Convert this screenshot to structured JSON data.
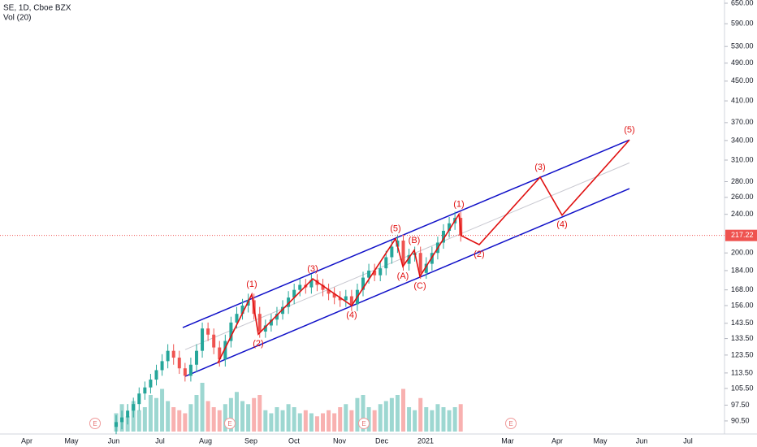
{
  "chart_data": {
    "type": "candlestick",
    "title": "SE, 1D, Cboe BZX",
    "subtitle": "Vol (20)",
    "log_scale": true,
    "grid": false,
    "up_color": "#26a69a",
    "down_color": "#ef5350",
    "ylim": [
      86.4,
      660
    ],
    "yticks": [
      {
        "value": 650,
        "label": "650.00"
      },
      {
        "value": 590,
        "label": "590.00"
      },
      {
        "value": 530,
        "label": "530.00"
      },
      {
        "value": 490,
        "label": "490.00"
      },
      {
        "value": 450,
        "label": "450.00"
      },
      {
        "value": 410,
        "label": "410.00"
      },
      {
        "value": 370,
        "label": "370.00"
      },
      {
        "value": 340,
        "label": "340.00"
      },
      {
        "value": 310,
        "label": "310.00"
      },
      {
        "value": 280,
        "label": "280.00"
      },
      {
        "value": 260,
        "label": "260.00"
      },
      {
        "value": 240,
        "label": "240.00"
      },
      {
        "value": 200,
        "label": "200.00"
      },
      {
        "value": 184,
        "label": "184.00"
      },
      {
        "value": 168,
        "label": "168.00"
      },
      {
        "value": 156,
        "label": "156.00"
      },
      {
        "value": 143.5,
        "label": "143.50"
      },
      {
        "value": 133.5,
        "label": "133.50"
      },
      {
        "value": 123.5,
        "label": "123.50"
      },
      {
        "value": 113.5,
        "label": "113.50"
      },
      {
        "value": 105.5,
        "label": "105.50"
      },
      {
        "value": 97.5,
        "label": "97.50"
      },
      {
        "value": 90.5,
        "label": "90.50"
      }
    ],
    "last_price": {
      "value": 217.22,
      "label": "217.22"
    },
    "x_labels": [
      "Apr",
      "May",
      "Jun",
      "Jul",
      "Aug",
      "Sep",
      "Oct",
      "Nov",
      "Dec",
      "2021",
      "Mar",
      "Apr",
      "May",
      "Jun",
      "Jul"
    ],
    "earnings": [
      "E",
      "E",
      "E",
      "E"
    ],
    "open": [
      88,
      90,
      92,
      95,
      98,
      103,
      106,
      110,
      115,
      120,
      126,
      122,
      116,
      112,
      118,
      126,
      140,
      136,
      128,
      121,
      132,
      144,
      150,
      156,
      160,
      150,
      138,
      142,
      146,
      150,
      155,
      162,
      168,
      172,
      170,
      176,
      172,
      168,
      165,
      162,
      160,
      163,
      157,
      168,
      178,
      184,
      180,
      186,
      196,
      206,
      212,
      190,
      198,
      200,
      182,
      190,
      200,
      210,
      222,
      230,
      236
    ],
    "high": [
      93,
      95,
      98,
      101,
      106,
      109,
      113,
      118,
      124,
      130,
      130,
      126,
      119,
      122,
      130,
      144,
      144,
      140,
      132,
      136,
      148,
      155,
      161,
      165,
      165,
      155,
      146,
      150,
      155,
      160,
      167,
      173,
      177,
      177,
      181,
      181,
      177,
      173,
      170,
      167,
      168,
      168,
      173,
      183,
      190,
      190,
      192,
      202,
      212,
      218,
      218,
      204,
      206,
      206,
      196,
      206,
      216,
      229,
      237,
      243,
      243
    ],
    "low": [
      85,
      87,
      89,
      92,
      95,
      100,
      103,
      107,
      112,
      116,
      118,
      113,
      109,
      109,
      114,
      122,
      132,
      124,
      117,
      117,
      128,
      140,
      146,
      151,
      146,
      134,
      134,
      138,
      142,
      146,
      150,
      157,
      163,
      165,
      165,
      167,
      163,
      160,
      157,
      155,
      155,
      152,
      152,
      163,
      173,
      175,
      175,
      180,
      190,
      200,
      184,
      184,
      192,
      177,
      177,
      184,
      194,
      204,
      215,
      223,
      211
    ],
    "close": [
      90,
      92,
      95,
      98,
      103,
      106,
      110,
      115,
      120,
      126,
      122,
      116,
      112,
      118,
      126,
      140,
      136,
      128,
      121,
      132,
      144,
      150,
      156,
      160,
      150,
      138,
      142,
      146,
      150,
      155,
      162,
      168,
      172,
      170,
      176,
      172,
      168,
      165,
      162,
      160,
      163,
      157,
      168,
      178,
      184,
      180,
      186,
      196,
      206,
      212,
      190,
      198,
      200,
      182,
      190,
      200,
      210,
      222,
      230,
      236,
      217
    ],
    "volume": [
      30,
      45,
      25,
      50,
      35,
      40,
      60,
      55,
      70,
      50,
      40,
      35,
      30,
      45,
      60,
      80,
      50,
      40,
      35,
      45,
      55,
      65,
      50,
      45,
      55,
      60,
      35,
      30,
      40,
      35,
      45,
      40,
      30,
      35,
      30,
      25,
      30,
      35,
      30,
      40,
      45,
      35,
      55,
      60,
      40,
      35,
      45,
      50,
      55,
      60,
      70,
      40,
      35,
      55,
      40,
      35,
      45,
      40,
      35,
      40,
      45
    ],
    "wave_path": {
      "color": "#e01010",
      "labels": [
        null,
        "(1)",
        "(2)",
        "(3)",
        "(4)",
        "(5)",
        "(A)",
        "(B)",
        "(C)",
        "(1)",
        null,
        "(2)",
        "(3)",
        "(4)",
        "(5)"
      ],
      "values": [
        118.8,
        164.5,
        136.3,
        177,
        156,
        214,
        187.6,
        202.6,
        179,
        240,
        217,
        208,
        286,
        239,
        341
      ]
    },
    "channel": {
      "color": "#1010c8",
      "upper": [
        140.6,
        341
      ],
      "lower": [
        111.7,
        271
      ],
      "middle": [
        126.7,
        306
      ],
      "middle_color": "#c8c8d0"
    }
  }
}
